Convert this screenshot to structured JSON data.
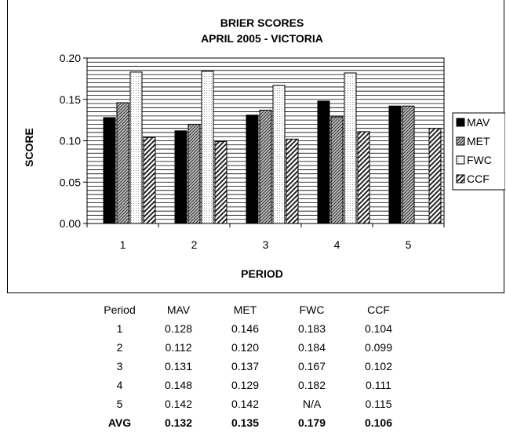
{
  "chart_data": {
    "type": "bar",
    "title": "BRIER SCORES",
    "subtitle": "APRIL 2005 - VICTORIA",
    "xlabel": "PERIOD",
    "ylabel": "SCORE",
    "categories": [
      "1",
      "2",
      "3",
      "4",
      "5"
    ],
    "ylim": [
      0,
      0.2
    ],
    "yticks": [
      "0.00",
      "0.05",
      "0.10",
      "0.15",
      "0.20"
    ],
    "grid": "horizontal",
    "legend_position": "right",
    "series": [
      {
        "name": "MAV",
        "values": [
          0.128,
          0.112,
          0.131,
          0.148,
          0.142
        ],
        "color": "#000000",
        "pattern": "solid"
      },
      {
        "name": "MET",
        "values": [
          0.146,
          0.12,
          0.137,
          0.129,
          0.142
        ],
        "color": "#9a9a9a",
        "pattern": "diagonal-fine"
      },
      {
        "name": "FWC",
        "values": [
          0.183,
          0.184,
          0.167,
          0.182,
          null
        ],
        "color": "#f2f2f2",
        "pattern": "dotted"
      },
      {
        "name": "CCF",
        "values": [
          0.104,
          0.099,
          0.102,
          0.111,
          0.115
        ],
        "color": "#555555",
        "pattern": "diagonal-bold"
      }
    ]
  },
  "table": {
    "headers": [
      "Period",
      "MAV",
      "MET",
      "FWC",
      "CCF"
    ],
    "rows": [
      [
        "1",
        "0.128",
        "0.146",
        "0.183",
        "0.104"
      ],
      [
        "2",
        "0.112",
        "0.120",
        "0.184",
        "0.099"
      ],
      [
        "3",
        "0.131",
        "0.137",
        "0.167",
        "0.102"
      ],
      [
        "4",
        "0.148",
        "0.129",
        "0.182",
        "0.111"
      ],
      [
        "5",
        "0.142",
        "0.142",
        "N/A",
        "0.115"
      ]
    ],
    "avg": [
      "AVG",
      "0.132",
      "0.135",
      "0.179",
      "0.106"
    ]
  }
}
